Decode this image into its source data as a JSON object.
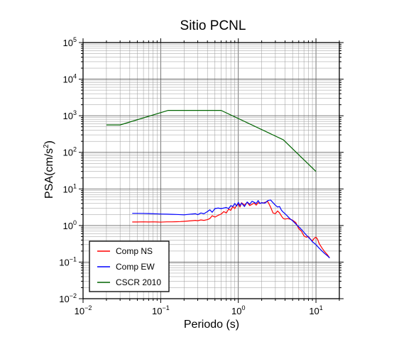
{
  "chart_data": {
    "type": "line",
    "title": "Sitio PCNL",
    "xlabel": "Periodo (s)",
    "ylabel": "PSA(cm/s²)",
    "ylabel_main": "PSA(cm/s",
    "ylabel_sup": "2",
    "ylabel_close": ")",
    "x_scale": "log",
    "y_scale": "log",
    "xlim": [
      0.01,
      20
    ],
    "ylim": [
      0.01,
      100000
    ],
    "grid": true,
    "legend_position": "bottom-left",
    "x_ticks": [
      {
        "value": 0.01,
        "base": "10",
        "exp": "−2"
      },
      {
        "value": 0.1,
        "base": "10",
        "exp": "−1"
      },
      {
        "value": 1,
        "base": "10",
        "exp": "0"
      },
      {
        "value": 10,
        "base": "10",
        "exp": "1"
      }
    ],
    "y_ticks": [
      {
        "value": 0.01,
        "base": "10",
        "exp": "−2"
      },
      {
        "value": 0.1,
        "base": "10",
        "exp": "−1"
      },
      {
        "value": 1,
        "base": "10",
        "exp": "0"
      },
      {
        "value": 10,
        "base": "10",
        "exp": "1"
      },
      {
        "value": 100,
        "base": "10",
        "exp": "2"
      },
      {
        "value": 1000,
        "base": "10",
        "exp": "3"
      },
      {
        "value": 10000,
        "base": "10",
        "exp": "4"
      },
      {
        "value": 100000,
        "base": "10",
        "exp": "5"
      }
    ],
    "series": [
      {
        "name": "Comp NS",
        "color": "#ff0000",
        "x": [
          0.043,
          0.05,
          0.06,
          0.07,
          0.08,
          0.09,
          0.1,
          0.12,
          0.14,
          0.16,
          0.18,
          0.2,
          0.22,
          0.25,
          0.28,
          0.3,
          0.33,
          0.36,
          0.4,
          0.43,
          0.46,
          0.5,
          0.55,
          0.6,
          0.65,
          0.7,
          0.75,
          0.8,
          0.85,
          0.9,
          0.95,
          1.0,
          1.05,
          1.1,
          1.2,
          1.3,
          1.4,
          1.5,
          1.6,
          1.7,
          1.8,
          1.9,
          2.0,
          2.1,
          2.2,
          2.4,
          2.6,
          2.8,
          3.0,
          3.2,
          3.4,
          3.6,
          3.8,
          4.0,
          4.3,
          4.6,
          5.0,
          5.5,
          6.0,
          6.5,
          7.0,
          7.5,
          8.0,
          8.5,
          9.0,
          9.5,
          10.0,
          10.5,
          11.0,
          12.0,
          13.0,
          14.0,
          15.0
        ],
        "y": [
          1.25,
          1.25,
          1.26,
          1.25,
          1.26,
          1.25,
          1.24,
          1.26,
          1.26,
          1.27,
          1.28,
          1.3,
          1.32,
          1.35,
          1.38,
          1.35,
          1.42,
          1.38,
          1.45,
          1.55,
          1.85,
          1.7,
          1.9,
          2.05,
          2.4,
          2.2,
          2.8,
          2.6,
          3.3,
          2.9,
          3.6,
          3.9,
          3.2,
          4.2,
          3.6,
          4.3,
          3.5,
          3.8,
          4.1,
          3.6,
          4.2,
          4.0,
          4.2,
          4.1,
          4.3,
          4.5,
          3.2,
          2.2,
          2.1,
          2.5,
          2.2,
          1.8,
          1.55,
          1.5,
          1.55,
          1.5,
          1.4,
          1.2,
          0.82,
          0.7,
          0.52,
          0.48,
          0.5,
          0.42,
          0.38,
          0.45,
          0.48,
          0.42,
          0.32,
          0.24,
          0.19,
          0.16,
          0.13
        ]
      },
      {
        "name": "Comp EW",
        "color": "#0000ff",
        "x": [
          0.043,
          0.05,
          0.06,
          0.07,
          0.08,
          0.09,
          0.1,
          0.12,
          0.14,
          0.16,
          0.18,
          0.2,
          0.22,
          0.25,
          0.28,
          0.3,
          0.33,
          0.36,
          0.4,
          0.43,
          0.46,
          0.5,
          0.55,
          0.6,
          0.65,
          0.7,
          0.75,
          0.8,
          0.85,
          0.9,
          0.95,
          1.0,
          1.05,
          1.1,
          1.2,
          1.3,
          1.4,
          1.5,
          1.6,
          1.7,
          1.8,
          1.9,
          2.0,
          2.2,
          2.4,
          2.6,
          2.8,
          3.0,
          3.2,
          3.4,
          3.6,
          3.8,
          4.0,
          4.3,
          4.6,
          5.0,
          5.5,
          6.0,
          6.5,
          7.0,
          7.5,
          8.0,
          8.5,
          9.0,
          10.0,
          11.0,
          12.0,
          13.0,
          14.0,
          15.0
        ],
        "y": [
          2.15,
          2.15,
          2.14,
          2.12,
          2.1,
          2.08,
          2.06,
          2.04,
          2.02,
          2.0,
          1.98,
          1.96,
          2.0,
          2.05,
          2.1,
          1.98,
          2.2,
          2.1,
          2.4,
          2.7,
          2.3,
          2.9,
          3.0,
          2.9,
          3.0,
          3.1,
          2.9,
          3.5,
          3.3,
          4.0,
          3.4,
          4.3,
          3.5,
          4.1,
          3.3,
          4.4,
          3.8,
          4.6,
          4.3,
          4.0,
          4.8,
          4.0,
          4.2,
          4.1,
          4.8,
          5.0,
          4.2,
          3.6,
          3.2,
          3.3,
          2.6,
          2.3,
          2.1,
          1.8,
          1.55,
          1.35,
          1.1,
          0.92,
          0.78,
          0.65,
          0.55,
          0.48,
          0.42,
          0.36,
          0.3,
          0.24,
          0.2,
          0.17,
          0.15,
          0.13
        ]
      },
      {
        "name": "CSCR 2010",
        "color": "#006400",
        "x": [
          0.02,
          0.03,
          0.125,
          0.6,
          3.8,
          10.0
        ],
        "y": [
          560,
          560,
          1400,
          1400,
          220,
          30
        ]
      }
    ]
  }
}
